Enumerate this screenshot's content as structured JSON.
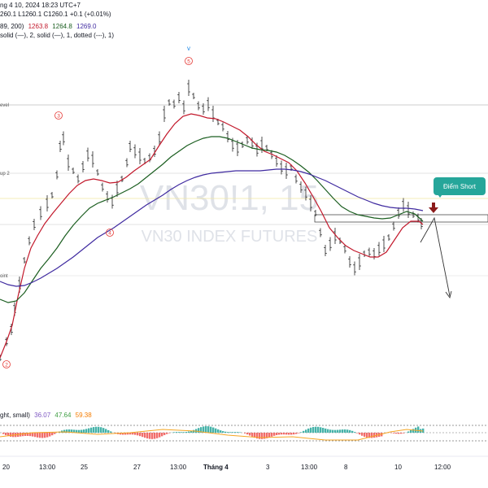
{
  "legend": {
    "line1": "ng 4 10, 2024 18:23 UTC+7",
    "line2_prefix": "260.1 L1260.1 C1260.1 +0.1 (+0.01%)",
    "line3_prefix": "89, 200)",
    "ma1": "1263.8",
    "ma2": "1264.8",
    "ma3": "1269.0",
    "line4": "solid (—), 2, solid (—), 1, dotted (---), 1)",
    "osc_prefix": "ght, small)",
    "osc1": "36.07",
    "osc2": "47.64",
    "osc3": "59.38"
  },
  "colors": {
    "ma_red": "#c2182b",
    "ma_green": "#1b5e20",
    "ma_purple": "#3f2aa0",
    "wave_label": "#e53935",
    "short_badge": "#26a69a",
    "short_arrow": "#8b1a1a",
    "watermark": "#d8dce3"
  },
  "watermark": {
    "symbol": "VN30!1, 15",
    "name": "VN30 INDEX FUTURES"
  },
  "levels": {
    "level_a": "evel",
    "level_b": "up 2",
    "level_c": "oint"
  },
  "waves": {
    "w2": "2",
    "w3": "3",
    "w4": "4",
    "w5": "5",
    "v_mark": "v"
  },
  "annotation": {
    "short_label": "Điểm Short"
  },
  "xaxis": {
    "labels": [
      "20",
      "13:00",
      "25",
      "27",
      "13:00",
      "Tháng 4",
      "3",
      "13:00",
      "8",
      "10",
      "12:00"
    ]
  }
}
